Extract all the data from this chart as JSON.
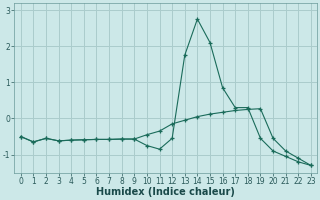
{
  "xlabel": "Humidex (Indice chaleur)",
  "x": [
    0,
    1,
    2,
    3,
    4,
    5,
    6,
    7,
    8,
    9,
    10,
    11,
    12,
    13,
    14,
    15,
    16,
    17,
    18,
    19,
    20,
    21,
    22,
    23
  ],
  "line1": [
    -0.5,
    -0.65,
    -0.55,
    -0.62,
    -0.6,
    -0.59,
    -0.58,
    -0.58,
    -0.57,
    -0.57,
    -0.75,
    -0.85,
    -0.55,
    1.75,
    2.75,
    2.1,
    0.85,
    0.3,
    0.3,
    -0.55,
    -0.9,
    -1.05,
    -1.2,
    -1.3
  ],
  "line2": [
    -0.5,
    -0.65,
    -0.55,
    -0.62,
    -0.6,
    -0.59,
    -0.58,
    -0.58,
    -0.57,
    -0.57,
    -0.45,
    -0.35,
    -0.15,
    -0.05,
    0.05,
    0.12,
    0.17,
    0.22,
    0.25,
    0.27,
    -0.55,
    -0.9,
    -1.1,
    -1.3
  ],
  "bg_color": "#cce8e8",
  "grid_color": "#aacccc",
  "line_color": "#1a6b5a",
  "marker": "+",
  "ylim": [
    -1.5,
    3.2
  ],
  "xlim": [
    -0.5,
    23.5
  ],
  "yticks": [
    -1,
    0,
    1,
    2,
    3
  ],
  "xticks": [
    0,
    1,
    2,
    3,
    4,
    5,
    6,
    7,
    8,
    9,
    10,
    11,
    12,
    13,
    14,
    15,
    16,
    17,
    18,
    19,
    20,
    21,
    22,
    23
  ],
  "tick_fontsize": 5.5,
  "xlabel_fontsize": 7.0
}
